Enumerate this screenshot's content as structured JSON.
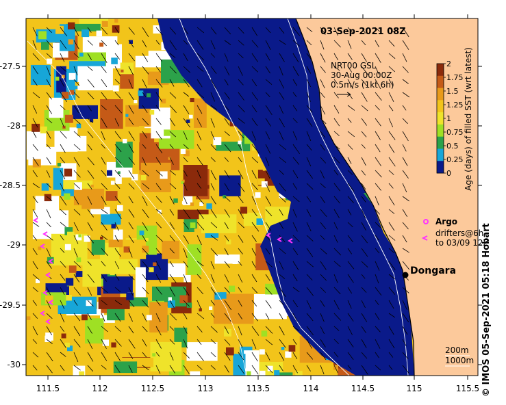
{
  "title": "03-Sep-2021 08Z",
  "dataset": {
    "line1": "NRT00 GSL",
    "line2": "30-Aug 00:00Z",
    "line3": "0.5m/s (1kt 6h)"
  },
  "colorbar": {
    "label": "Age (days) of filled SST (wrt latest)",
    "ticks": [
      "2",
      "1.75",
      "1.5",
      "1.25",
      "1",
      "0.75",
      "0.5",
      "0.25",
      "0"
    ],
    "colors": [
      "#8b2a0b",
      "#c55a17",
      "#e89a1a",
      "#f2c41a",
      "#efe32a",
      "#9fe024",
      "#2ca24a",
      "#17a6d8",
      "#0a1a8a",
      "#000066"
    ]
  },
  "axes": {
    "lat_ticks": [
      "-27.5",
      "-28",
      "-28.5",
      "-29",
      "-29.5",
      "-30"
    ],
    "lon_ticks": [
      "111.5",
      "112",
      "112.5",
      "113",
      "113.5",
      "114",
      "114.5",
      "115",
      "115.5"
    ]
  },
  "legend": {
    "argo": "Argo",
    "drifters_line1": "drifters@6h",
    "drifters_line2": "to 03/09 12Z"
  },
  "place": "Dongara",
  "contours": {
    "line1": "200m",
    "line2": "1000m"
  },
  "credit": "© IMOS 05-Sep-2021 05:18 Hobart",
  "colors": {
    "land": "#fcc99b",
    "deep_water": "#0a1a8a",
    "argo": "#ff33ff"
  }
}
